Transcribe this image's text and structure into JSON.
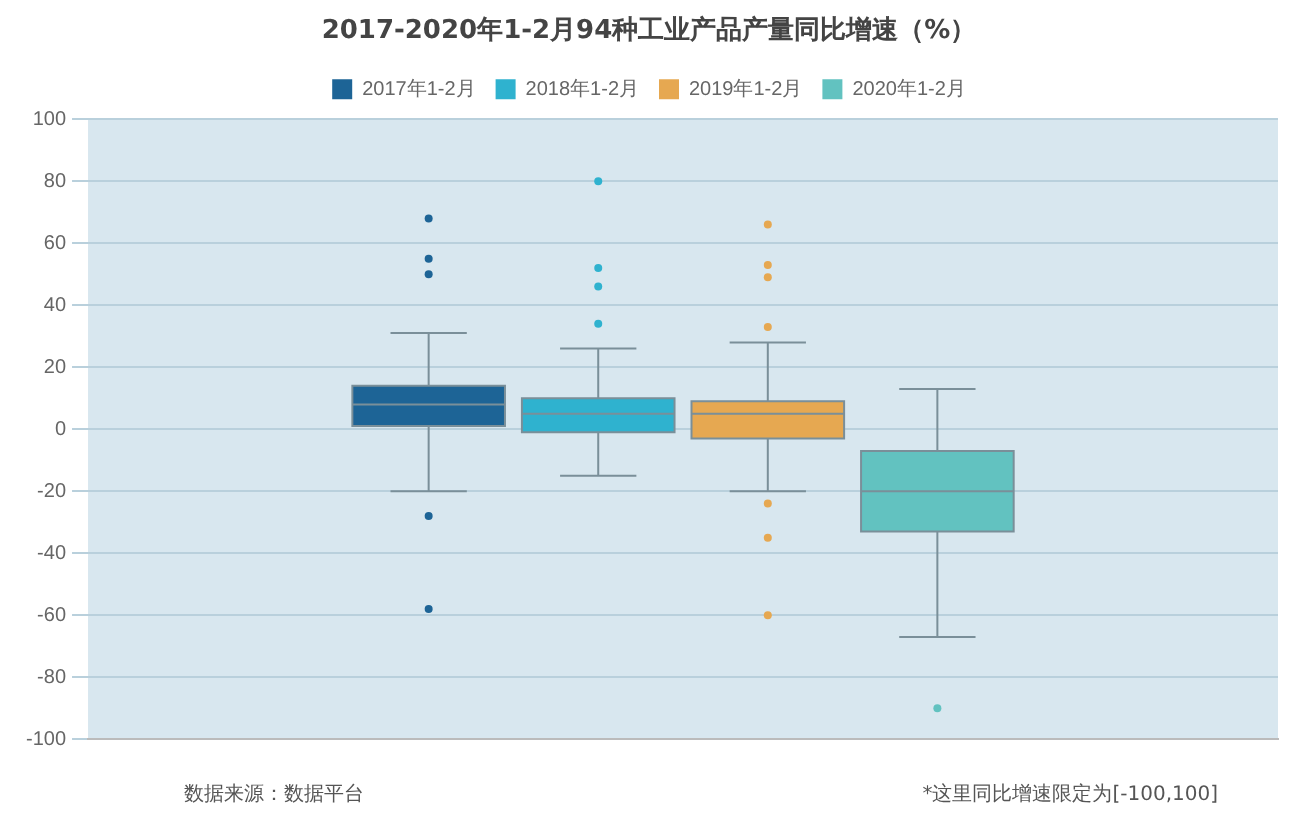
{
  "chart_data": {
    "type": "box",
    "title": "2017-2020年1-2月94种工业产品产量同比增速（%）",
    "categories": [
      null
    ],
    "series": [
      {
        "name": "2017年1-2月",
        "color": "#1d6496",
        "boxes": [
          {
            "low": -20,
            "q1": 1,
            "median": 8,
            "q3": 14,
            "high": 31,
            "outliers": [
              68,
              55,
              50,
              -28,
              -58
            ]
          }
        ]
      },
      {
        "name": "2018年1-2月",
        "color": "#2fb2cf",
        "boxes": [
          {
            "low": -15,
            "q1": -1,
            "median": 5,
            "q3": 10,
            "high": 26,
            "outliers": [
              80,
              52,
              46,
              34
            ]
          }
        ]
      },
      {
        "name": "2019年1-2月",
        "color": "#e6a851",
        "boxes": [
          {
            "low": -20,
            "q1": -3,
            "median": 5,
            "q3": 9,
            "high": 28,
            "outliers": [
              66,
              53,
              49,
              33,
              -24,
              -35,
              -60
            ]
          }
        ]
      },
      {
        "name": "2020年1-2月",
        "color": "#62c2c0",
        "boxes": [
          {
            "low": -67,
            "q1": -33,
            "median": -20,
            "q3": -7,
            "high": 13,
            "outliers": [
              -90
            ]
          }
        ]
      }
    ],
    "ylim": [
      -100,
      100
    ],
    "yticks": [
      -100,
      -80,
      -60,
      -40,
      -20,
      0,
      20,
      40,
      60,
      80,
      100
    ],
    "grid": "y",
    "legend": "top",
    "annotations": [
      "数据来源：数据平台",
      "*这里同比增速限定为[-100,100]"
    ]
  }
}
